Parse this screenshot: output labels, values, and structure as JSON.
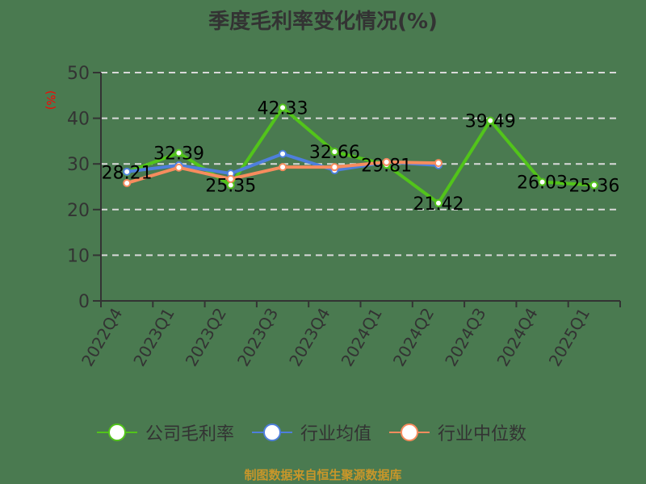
{
  "title": "季度毛利率变化情况(%)",
  "footer": "制图数据来自恒生聚源数据库",
  "chart_data": {
    "type": "line",
    "title": "季度毛利率变化情况(%)",
    "xlabel": "",
    "ylabel": "(%)",
    "ylim": [
      0,
      50
    ],
    "yticks": [
      0,
      10,
      20,
      30,
      40,
      50
    ],
    "grid": true,
    "legend_position": "bottom",
    "categories": [
      "2022Q4",
      "2023Q1",
      "2023Q2",
      "2023Q3",
      "2023Q4",
      "2024Q1",
      "2024Q2",
      "2024Q3",
      "2024Q4",
      "2025Q1"
    ],
    "series": [
      {
        "name": "公司毛利率",
        "color": "#52c41a",
        "values": [
          28.21,
          32.39,
          25.35,
          42.33,
          32.66,
          29.81,
          21.42,
          39.49,
          26.03,
          25.36
        ],
        "labels": true
      },
      {
        "name": "行业均值",
        "color": "#4e7fdc",
        "values": [
          28.3,
          29.7,
          27.9,
          32.2,
          28.6,
          30.4,
          29.7,
          null,
          null,
          null
        ],
        "labels": false
      },
      {
        "name": "行业中位数",
        "color": "#f78c5e",
        "values": [
          25.8,
          29.2,
          26.7,
          29.3,
          29.3,
          30.4,
          30.2,
          null,
          null,
          null
        ],
        "labels": false
      }
    ]
  }
}
